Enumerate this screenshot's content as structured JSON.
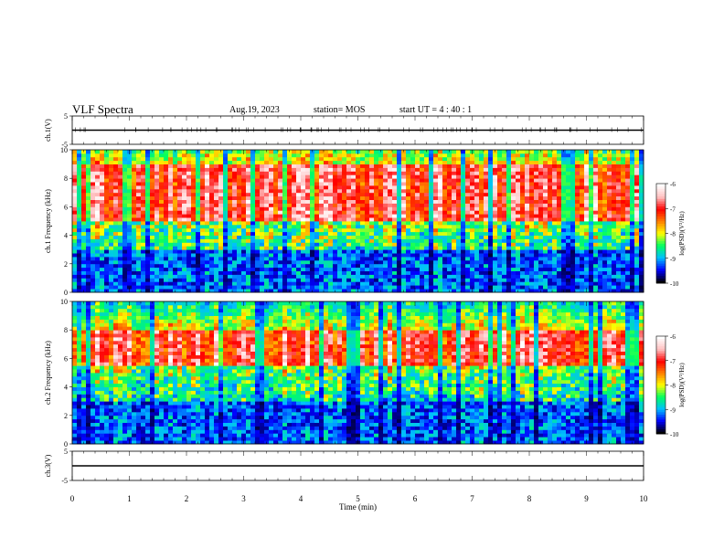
{
  "header": {
    "title": "VLF Spectra",
    "date": "Aug.19, 2023",
    "station": "station= MOS",
    "start_time": "start  UT =   4 : 40 : 1"
  },
  "chart_data": [
    {
      "type": "line",
      "panel": "ch1-waveform",
      "ylabel": "ch.1(V)",
      "ylim": [
        -5,
        5
      ],
      "yticks": [
        "5",
        "-5"
      ],
      "x": [
        0,
        10
      ],
      "series": [
        {
          "values": [
            0,
            0
          ]
        }
      ]
    },
    {
      "type": "heatmap",
      "panel": "ch1-spectrogram",
      "ylabel": "ch.1  Frequency (kHz)",
      "ylim": [
        0,
        10
      ],
      "yticks": [
        "0",
        "2",
        "4",
        "6",
        "8",
        "10"
      ],
      "xlim": [
        0,
        10
      ],
      "intense_band_khz": [
        5,
        9
      ],
      "colorbar": {
        "label": "log(PSD)(V²/Hz)",
        "ticks": [
          "-6",
          "-7",
          "-8",
          "-9",
          "-10"
        ],
        "range": [
          -10,
          -6
        ],
        "colors": [
          "#000000",
          "#0000ff",
          "#00c0ff",
          "#00ff60",
          "#ffff00",
          "#ff8000",
          "#ff0000",
          "#ffc0c0",
          "#ffffff"
        ]
      }
    },
    {
      "type": "heatmap",
      "panel": "ch2-spectrogram",
      "ylabel": "ch.2  Frequency (kHz)",
      "ylim": [
        0,
        10
      ],
      "yticks": [
        "0",
        "2",
        "4",
        "6",
        "8",
        "10"
      ],
      "xlim": [
        0,
        10
      ],
      "intense_band_khz": [
        5.5,
        8
      ],
      "colorbar": {
        "label": "log(PSD)(V²/Hz)",
        "ticks": [
          "-6",
          "-7",
          "-8",
          "-9",
          "-10"
        ],
        "range": [
          -10,
          -6
        ],
        "colors": [
          "#000000",
          "#0000ff",
          "#00c0ff",
          "#00ff60",
          "#ffff00",
          "#ff8000",
          "#ff0000",
          "#ffc0c0",
          "#ffffff"
        ]
      }
    },
    {
      "type": "line",
      "panel": "ch3-waveform",
      "ylabel": "ch.3(V)",
      "ylim": [
        -5,
        5
      ],
      "yticks": [
        "5",
        "-5"
      ],
      "x": [
        0,
        10
      ],
      "series": [
        {
          "values": [
            0,
            0
          ]
        }
      ]
    }
  ],
  "x_axis": {
    "label": "Time  (min)",
    "ticks": [
      "0",
      "1",
      "2",
      "3",
      "4",
      "5",
      "6",
      "7",
      "8",
      "9",
      "10"
    ]
  },
  "colors": {
    "line": "#000000",
    "background": "#ffffff"
  }
}
